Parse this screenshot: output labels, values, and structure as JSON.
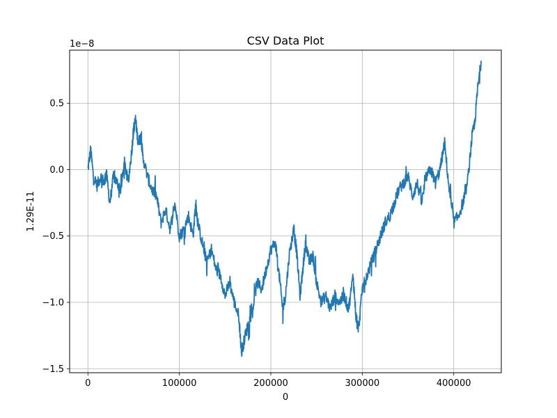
{
  "chart_data": {
    "type": "line",
    "title": "CSV Data Plot",
    "xlabel": "0",
    "ylabel": "1.29E-11",
    "y_offset_label": "1e−8",
    "xlim": [
      -20000,
      452000
    ],
    "ylim": [
      -1.53,
      0.9
    ],
    "x_ticks": [
      0,
      100000,
      200000,
      300000,
      400000
    ],
    "x_tick_labels": [
      "0",
      "100000",
      "200000",
      "300000",
      "400000"
    ],
    "y_ticks": [
      -1.5,
      -1.0,
      -0.5,
      0.0,
      0.5
    ],
    "y_tick_labels": [
      "−1.5",
      "−1.0",
      "−0.5",
      "0.0",
      "0.5"
    ],
    "grid": true,
    "series": [
      {
        "color": "#1f77b4",
        "x": [
          0,
          3000,
          6000,
          10000,
          14000,
          18000,
          20000,
          24000,
          28000,
          32000,
          36000,
          40000,
          44000,
          48000,
          50000,
          52000,
          55000,
          58000,
          60000,
          65000,
          70000,
          75000,
          80000,
          85000,
          90000,
          95000,
          100000,
          105000,
          110000,
          115000,
          118000,
          120000,
          125000,
          130000,
          135000,
          140000,
          145000,
          150000,
          155000,
          160000,
          165000,
          168000,
          172000,
          176000,
          180000,
          185000,
          190000,
          195000,
          200000,
          205000,
          210000,
          213000,
          216000,
          220000,
          225000,
          228000,
          232000,
          235000,
          238000,
          242000,
          246000,
          250000,
          255000,
          260000,
          265000,
          270000,
          275000,
          280000,
          285000,
          290000,
          293000,
          296000,
          300000,
          305000,
          310000,
          315000,
          320000,
          325000,
          330000,
          335000,
          340000,
          345000,
          350000,
          355000,
          360000,
          365000,
          370000,
          375000,
          380000,
          385000,
          390000,
          395000,
          400000,
          405000,
          410000,
          415000,
          420000,
          423000,
          426000,
          430000
        ],
        "y": [
          0.0,
          0.15,
          -0.05,
          -0.12,
          -0.05,
          -0.1,
          -0.02,
          -0.25,
          -0.05,
          -0.1,
          -0.15,
          0.05,
          -0.1,
          0.15,
          0.3,
          0.38,
          0.2,
          0.25,
          0.1,
          -0.05,
          -0.15,
          -0.2,
          -0.4,
          -0.3,
          -0.45,
          -0.25,
          -0.5,
          -0.45,
          -0.35,
          -0.5,
          -0.25,
          -0.4,
          -0.55,
          -0.7,
          -0.6,
          -0.75,
          -0.8,
          -0.95,
          -0.85,
          -1.0,
          -1.1,
          -1.38,
          -1.25,
          -1.15,
          -1.05,
          -0.85,
          -0.9,
          -0.75,
          -0.6,
          -0.55,
          -0.85,
          -1.05,
          -0.95,
          -0.65,
          -0.45,
          -0.6,
          -0.95,
          -0.75,
          -0.55,
          -0.7,
          -0.65,
          -0.85,
          -1.0,
          -0.95,
          -1.05,
          -0.95,
          -1.0,
          -0.95,
          -1.05,
          -0.8,
          -1.1,
          -1.2,
          -0.9,
          -0.8,
          -0.7,
          -0.6,
          -0.5,
          -0.4,
          -0.35,
          -0.25,
          -0.15,
          -0.1,
          -0.05,
          -0.2,
          -0.1,
          -0.25,
          -0.05,
          0.0,
          -0.1,
          0.0,
          0.2,
          -0.15,
          -0.4,
          -0.35,
          -0.25,
          -0.1,
          0.25,
          0.35,
          0.6,
          0.82
        ]
      }
    ]
  }
}
